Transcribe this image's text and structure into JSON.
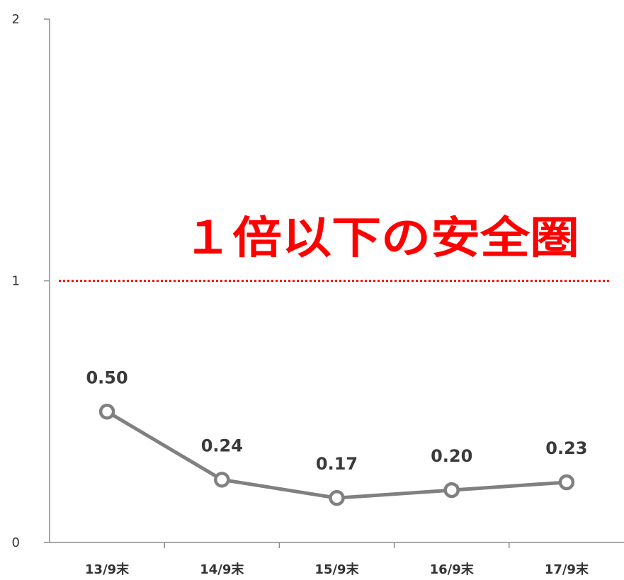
{
  "chart_data": {
    "type": "line",
    "title": "",
    "xlabel": "",
    "ylabel": "",
    "categories": [
      "13/9末",
      "14/9末",
      "15/9末",
      "16/9末",
      "17/9末"
    ],
    "series": [
      {
        "values": [
          0.5,
          0.24,
          0.17,
          0.2,
          0.23
        ]
      }
    ],
    "data_labels": [
      "0.50",
      "0.24",
      "0.17",
      "0.20",
      "0.23"
    ],
    "ylim": [
      0,
      2
    ],
    "yticks": [
      "0",
      "1",
      "2"
    ],
    "grid": false,
    "legend": "none",
    "reference_line": {
      "value": 1,
      "style": "dotted"
    },
    "annotation": "１倍以下の安全圏",
    "colors": {
      "series": "#808080",
      "reference": "#ff0000",
      "annotation": "#ff0000"
    }
  }
}
